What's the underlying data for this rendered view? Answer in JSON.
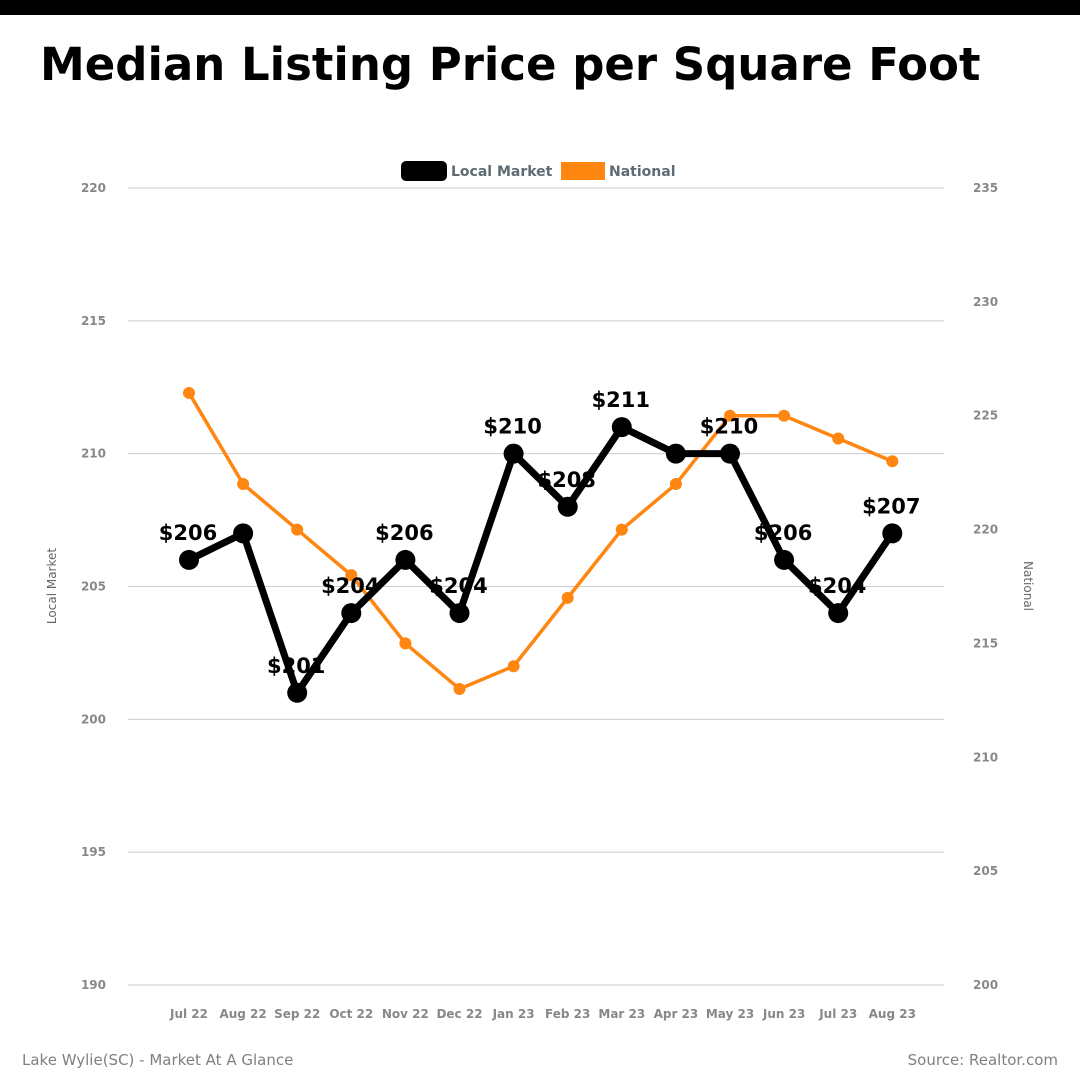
{
  "header": {
    "title": "Median Listing Price per Square Foot"
  },
  "footer": {
    "left": "Lake Wylie(SC) - Market At A Glance",
    "right": "Source: Realtor.com"
  },
  "colors": {
    "local": "#000000",
    "national": "#ff8610",
    "grid": "#cccccc",
    "top_bar": "#000000"
  },
  "chart_data": {
    "type": "line",
    "categories": [
      "Jul 22",
      "Aug 22",
      "Sep 22",
      "Oct 22",
      "Nov 22",
      "Dec 22",
      "Jan 23",
      "Feb 23",
      "Mar 23",
      "Apr 23",
      "May 23",
      "Jun 23",
      "Jul 23",
      "Aug 23"
    ],
    "series": [
      {
        "name": "Local Market",
        "axis": "left",
        "values": [
          206,
          207,
          201,
          204,
          206,
          204,
          210,
          208,
          211,
          210,
          210,
          206,
          204,
          207
        ],
        "data_labels": [
          "$206",
          "",
          "$201",
          "$204",
          "$206",
          "$204",
          "$210",
          "$208",
          "$211",
          "",
          "$210",
          "$206",
          "$204",
          "$207"
        ]
      },
      {
        "name": "National",
        "axis": "right",
        "values": [
          226,
          222,
          220,
          218,
          215,
          213,
          214,
          217,
          220,
          222,
          225,
          225,
          224,
          223
        ]
      }
    ],
    "y_left": {
      "label": "Local Market",
      "min": 190,
      "max": 220,
      "ticks": [
        190,
        195,
        200,
        205,
        210,
        215,
        220
      ]
    },
    "y_right": {
      "label": "National",
      "min": 200,
      "max": 235,
      "ticks": [
        200,
        205,
        210,
        215,
        220,
        225,
        230,
        235
      ]
    },
    "grid": true,
    "legend_position": "top-center"
  }
}
